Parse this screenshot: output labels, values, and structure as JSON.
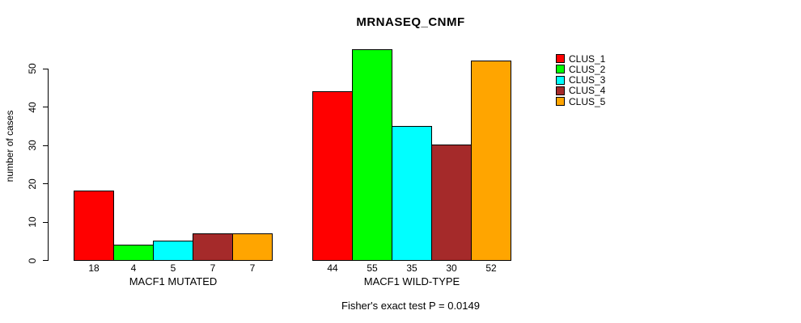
{
  "chart_data": {
    "type": "bar",
    "title": "MRNASEQ_CNMF",
    "ylabel": "number of cases",
    "xlabel": "",
    "yticks": [
      0,
      10,
      20,
      30,
      40,
      50
    ],
    "ylim": [
      0,
      55
    ],
    "grid": false,
    "legend_position": "right-outside",
    "categories": [
      "MACF1 MUTATED",
      "MACF1 WILD-TYPE"
    ],
    "groups": [
      {
        "label": "MACF1 MUTATED",
        "values": [
          18,
          4,
          5,
          7,
          7
        ]
      },
      {
        "label": "MACF1 WILD-TYPE",
        "values": [
          44,
          55,
          35,
          30,
          52
        ]
      }
    ],
    "series": [
      {
        "name": "CLUS_1",
        "color": "#ff0000"
      },
      {
        "name": "CLUS_2",
        "color": "#00ff00"
      },
      {
        "name": "CLUS_3",
        "color": "#00ffff"
      },
      {
        "name": "CLUS_4",
        "color": "#a52a2a"
      },
      {
        "name": "CLUS_5",
        "color": "#ffa500"
      }
    ],
    "annotation": "Fisher's exact test P = 0.0149"
  }
}
